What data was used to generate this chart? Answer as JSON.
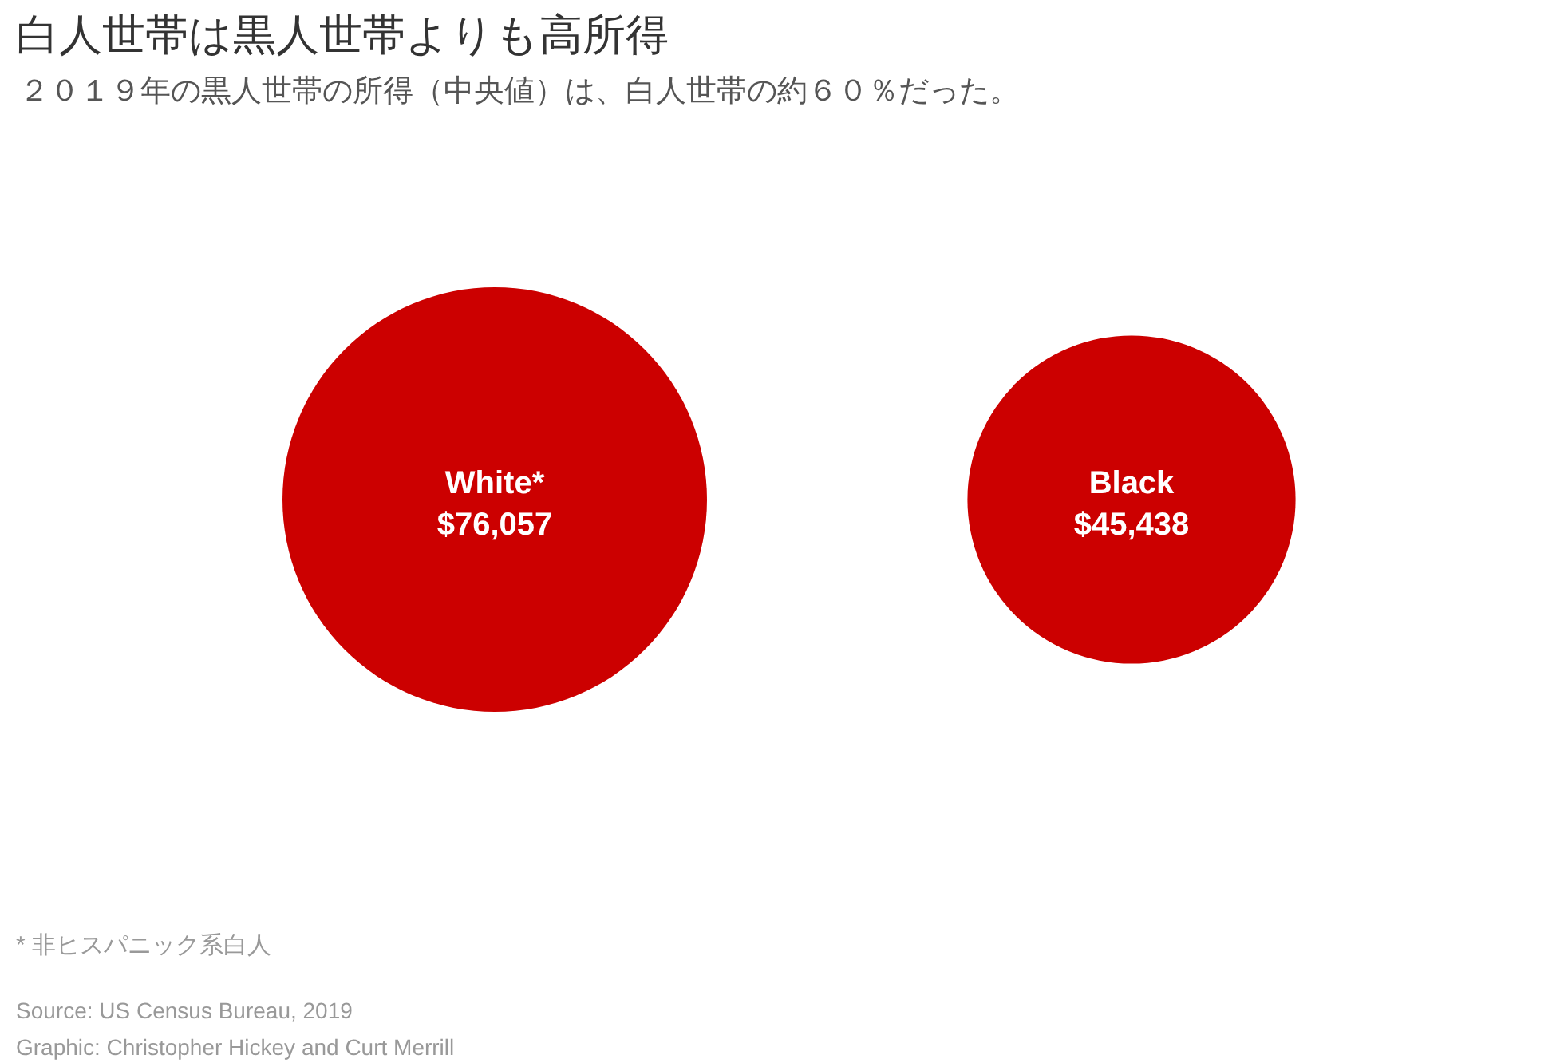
{
  "chart_data": {
    "type": "other",
    "title": "白人世帯は黒人世帯よりも高所得",
    "subtitle": "２０１９年の黒人世帯の所得（中央値）は、白人世帯の約６０％だった。",
    "categories": [
      "White*",
      "Black"
    ],
    "values": [
      76057,
      45438
    ],
    "value_labels": [
      "$76,057",
      "$45,438"
    ],
    "colors": [
      "#cc0000",
      "#cc0000"
    ],
    "annotations": [
      "* 非ヒスパニック系白人",
      "Source: US Census Bureau, 2019",
      "Graphic: Christopher Hickey and Curt Merrill"
    ]
  }
}
